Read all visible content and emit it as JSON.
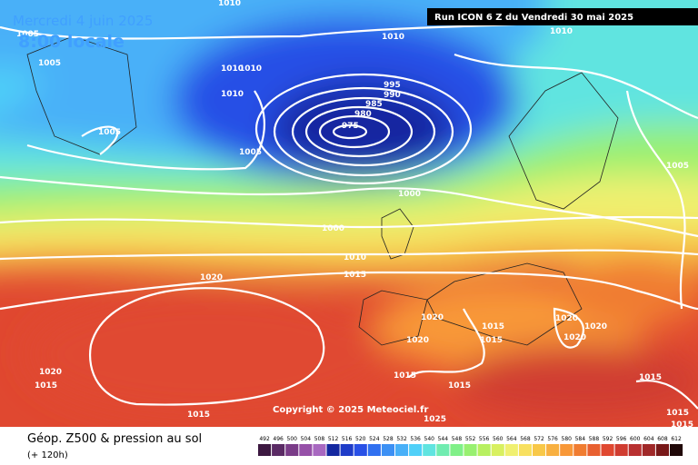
{
  "header": {
    "date": "Mercredi 4 juin 2025",
    "time": "8:00 locale",
    "run": "Run ICON 6 Z du Vendredi 30 mai 2025"
  },
  "copyright": "Copyright © 2025 Meteociel.fr",
  "footer": {
    "title": "Géop. Z500 & pression au sol",
    "lead": "(+ 120h)"
  },
  "legend": {
    "values": [
      492,
      496,
      500,
      504,
      508,
      512,
      516,
      520,
      524,
      528,
      532,
      536,
      540,
      544,
      548,
      552,
      556,
      560,
      564,
      568,
      572,
      576,
      580,
      584,
      588,
      592,
      596,
      600,
      604,
      608,
      612
    ],
    "colors": [
      "#3c1840",
      "#5a2a64",
      "#7a3c88",
      "#9650a8",
      "#a868c0",
      "#1428a0",
      "#1e3cc8",
      "#2850e6",
      "#3070f0",
      "#3c90f4",
      "#48b0f8",
      "#50d0f8",
      "#60e4e0",
      "#70ecb0",
      "#80f088",
      "#98f070",
      "#b8f060",
      "#d8f060",
      "#f0f070",
      "#f8e060",
      "#f8c848",
      "#f8b040",
      "#f89838",
      "#f07c30",
      "#e86030",
      "#e04830",
      "#d03c30",
      "#b83030",
      "#a02828",
      "#781818",
      "#200808"
    ]
  },
  "isobars": [
    "1010",
    "1005",
    "1005",
    "1010",
    "1010",
    "1010",
    "1010",
    "1010",
    "1005",
    "1005",
    "995",
    "990",
    "985",
    "980",
    "975",
    "1000",
    "1000",
    "1005",
    "1010",
    "1015",
    "1020",
    "1020",
    "1020",
    "1015",
    "1015",
    "1020",
    "1020",
    "1020",
    "1020",
    "1015",
    "1015",
    "1015",
    "1015",
    "1025",
    "1015",
    "1015",
    "1015"
  ]
}
